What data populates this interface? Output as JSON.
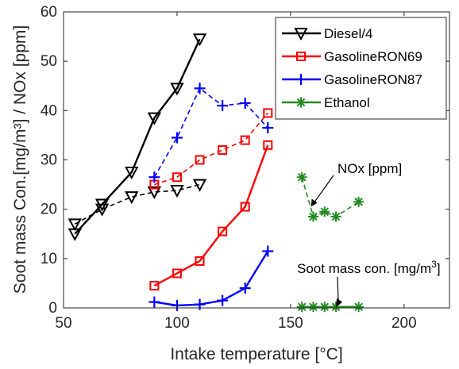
{
  "chart_data": {
    "type": "line",
    "xlabel": "Intake temperature [°C]",
    "ylabel": "Soot mass Con.[mg/m³] / NOx [ppm]",
    "xlim": [
      50,
      220
    ],
    "ylim": [
      0,
      60
    ],
    "xticks": [
      50,
      100,
      150,
      200
    ],
    "yticks": [
      0,
      10,
      20,
      30,
      40,
      50,
      60
    ],
    "grid": false,
    "legend_position": "top-right",
    "series": [
      {
        "name": "Diesel/4",
        "color": "#000000",
        "marker": "triangle-down",
        "style": "solid",
        "quantity": "soot",
        "x": [
          55,
          67,
          80,
          90,
          100,
          110
        ],
        "y": [
          15,
          21,
          27.5,
          38.5,
          44.5,
          54.5
        ]
      },
      {
        "name": "Diesel/4",
        "color": "#000000",
        "marker": "triangle-down",
        "style": "dashed",
        "quantity": "nox",
        "x": [
          55,
          67,
          80,
          90,
          100,
          110
        ],
        "y": [
          17,
          20,
          22.5,
          23.5,
          23.8,
          25
        ]
      },
      {
        "name": "GasolineRON69",
        "color": "#ff0000",
        "marker": "square",
        "style": "solid",
        "quantity": "soot",
        "x": [
          90,
          100,
          110,
          120,
          130,
          140
        ],
        "y": [
          4.5,
          7,
          9.5,
          15.5,
          20.5,
          33
        ]
      },
      {
        "name": "GasolineRON69",
        "color": "#ff0000",
        "marker": "square",
        "style": "dashed",
        "quantity": "nox",
        "x": [
          90,
          100,
          110,
          120,
          130,
          140
        ],
        "y": [
          25,
          26.5,
          30,
          32,
          34,
          39.5
        ]
      },
      {
        "name": "GasolineRON87",
        "color": "#0000ff",
        "marker": "plus",
        "style": "solid",
        "quantity": "soot",
        "x": [
          90,
          100,
          110,
          120,
          130,
          140
        ],
        "y": [
          1.2,
          0.5,
          0.7,
          1.5,
          4,
          11.5
        ]
      },
      {
        "name": "GasolineRON87",
        "color": "#0000ff",
        "marker": "plus",
        "style": "dashed",
        "quantity": "nox",
        "x": [
          90,
          100,
          110,
          120,
          130,
          140
        ],
        "y": [
          26.5,
          34.5,
          44.5,
          41,
          41.5,
          36.5
        ]
      },
      {
        "name": "Ethanol",
        "color": "#228b22",
        "marker": "asterisk",
        "style": "solid",
        "quantity": "soot",
        "x": [
          155,
          160,
          165,
          170,
          180
        ],
        "y": [
          0.2,
          0.2,
          0.2,
          0.2,
          0.2
        ]
      },
      {
        "name": "Ethanol",
        "color": "#228b22",
        "marker": "asterisk",
        "style": "dashed",
        "quantity": "nox",
        "x": [
          155,
          160,
          165,
          170,
          180
        ],
        "y": [
          26.5,
          18.5,
          19.5,
          18.5,
          21.5
        ]
      }
    ],
    "legend": [
      {
        "label": "Diesel/4",
        "color": "#000000",
        "marker": "triangle-down"
      },
      {
        "label": "GasolineRON69",
        "color": "#ff0000",
        "marker": "square"
      },
      {
        "label": "GasolineRON87",
        "color": "#0000ff",
        "marker": "plus"
      },
      {
        "label": "Ethanol",
        "color": "#228b22",
        "marker": "asterisk"
      }
    ],
    "annotations": [
      {
        "text": "NOx [ppm]",
        "arrow_to": [
          159,
          20.5
        ]
      },
      {
        "text": "Soot mass con. [mg/m³]",
        "arrow_to": [
          170,
          0.2
        ]
      }
    ]
  }
}
